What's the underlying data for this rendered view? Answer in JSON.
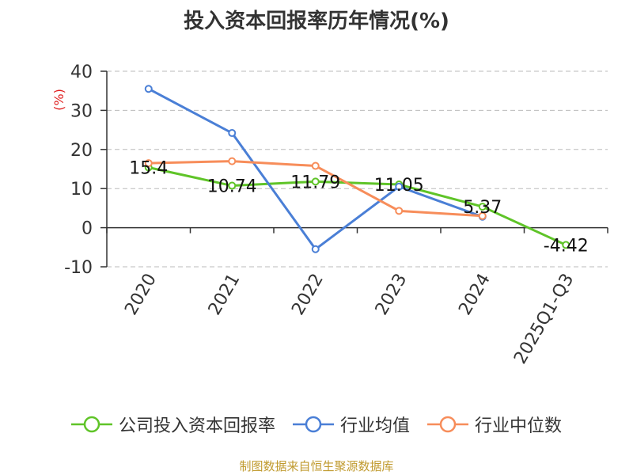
{
  "chart_data": {
    "type": "line",
    "title": "投入资本回报率历年情况(%)",
    "ylabel": "(%)",
    "xlabel": "",
    "ylim": [
      -10,
      40
    ],
    "yticks": [
      40,
      30,
      20,
      10,
      0,
      -10
    ],
    "ytick_labels": [
      "40",
      "30",
      "20",
      "10",
      "0",
      "-10"
    ],
    "grid": true,
    "categories": [
      "2020",
      "2021",
      "2022",
      "2023",
      "2024",
      "2025Q1-Q3"
    ],
    "series": [
      {
        "name": "公司投入资本回报率",
        "color": "#5fc428",
        "values": [
          15.4,
          10.74,
          11.79,
          11.05,
          5.37,
          -4.42
        ],
        "labels": [
          "15.4",
          "10.74",
          "11.79",
          "11.05",
          "5.37",
          "-4.42"
        ]
      },
      {
        "name": "行业均值",
        "color": "#4a7fd6",
        "values": [
          35.5,
          24.2,
          -5.5,
          10.5,
          2.8,
          null
        ]
      },
      {
        "name": "行业中位数",
        "color": "#f78d5a",
        "values": [
          16.5,
          17.0,
          15.8,
          4.3,
          3.0,
          null
        ]
      }
    ],
    "legend_position": "bottom"
  },
  "source": "制图数据来自恒生聚源数据库",
  "colors": {
    "axis": "#333333",
    "grid": "#bbbbbb",
    "ylabel": "#e02020",
    "source": "#c09a2e"
  }
}
